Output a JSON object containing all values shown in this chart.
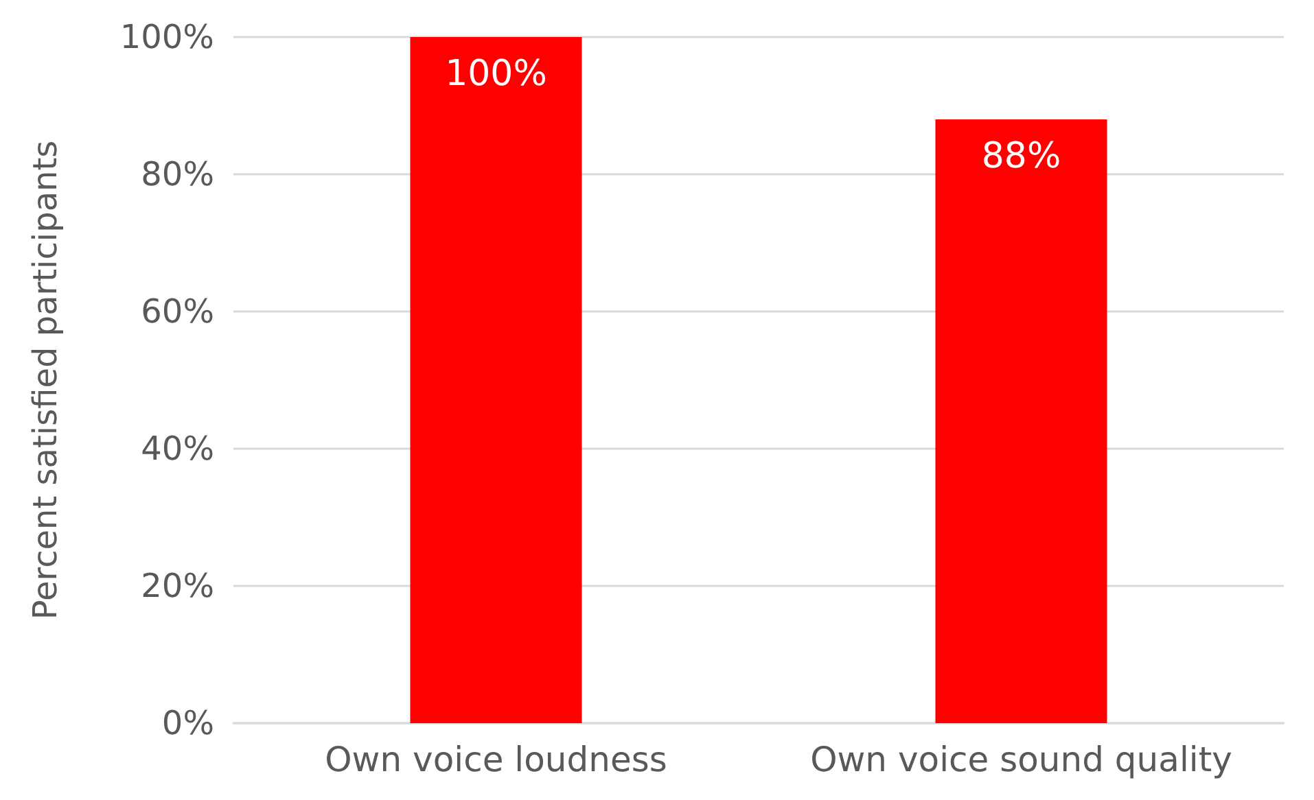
{
  "chart_data": {
    "type": "bar",
    "ylabel": "Percent satisfied participants",
    "categories": [
      "Own voice loudness",
      "Own voice sound quality"
    ],
    "values": [
      100,
      88
    ],
    "color": "#ff0000",
    "value_labels": [
      "100%",
      "88%"
    ],
    "ylim": [
      0,
      100
    ],
    "yticks": [
      {
        "value": 0,
        "label": "0%"
      },
      {
        "value": 20,
        "label": "20%"
      },
      {
        "value": 40,
        "label": "40%"
      },
      {
        "value": 60,
        "label": "60%"
      },
      {
        "value": 80,
        "label": "80%"
      },
      {
        "value": 100,
        "label": "100%"
      }
    ],
    "grid": "y"
  }
}
